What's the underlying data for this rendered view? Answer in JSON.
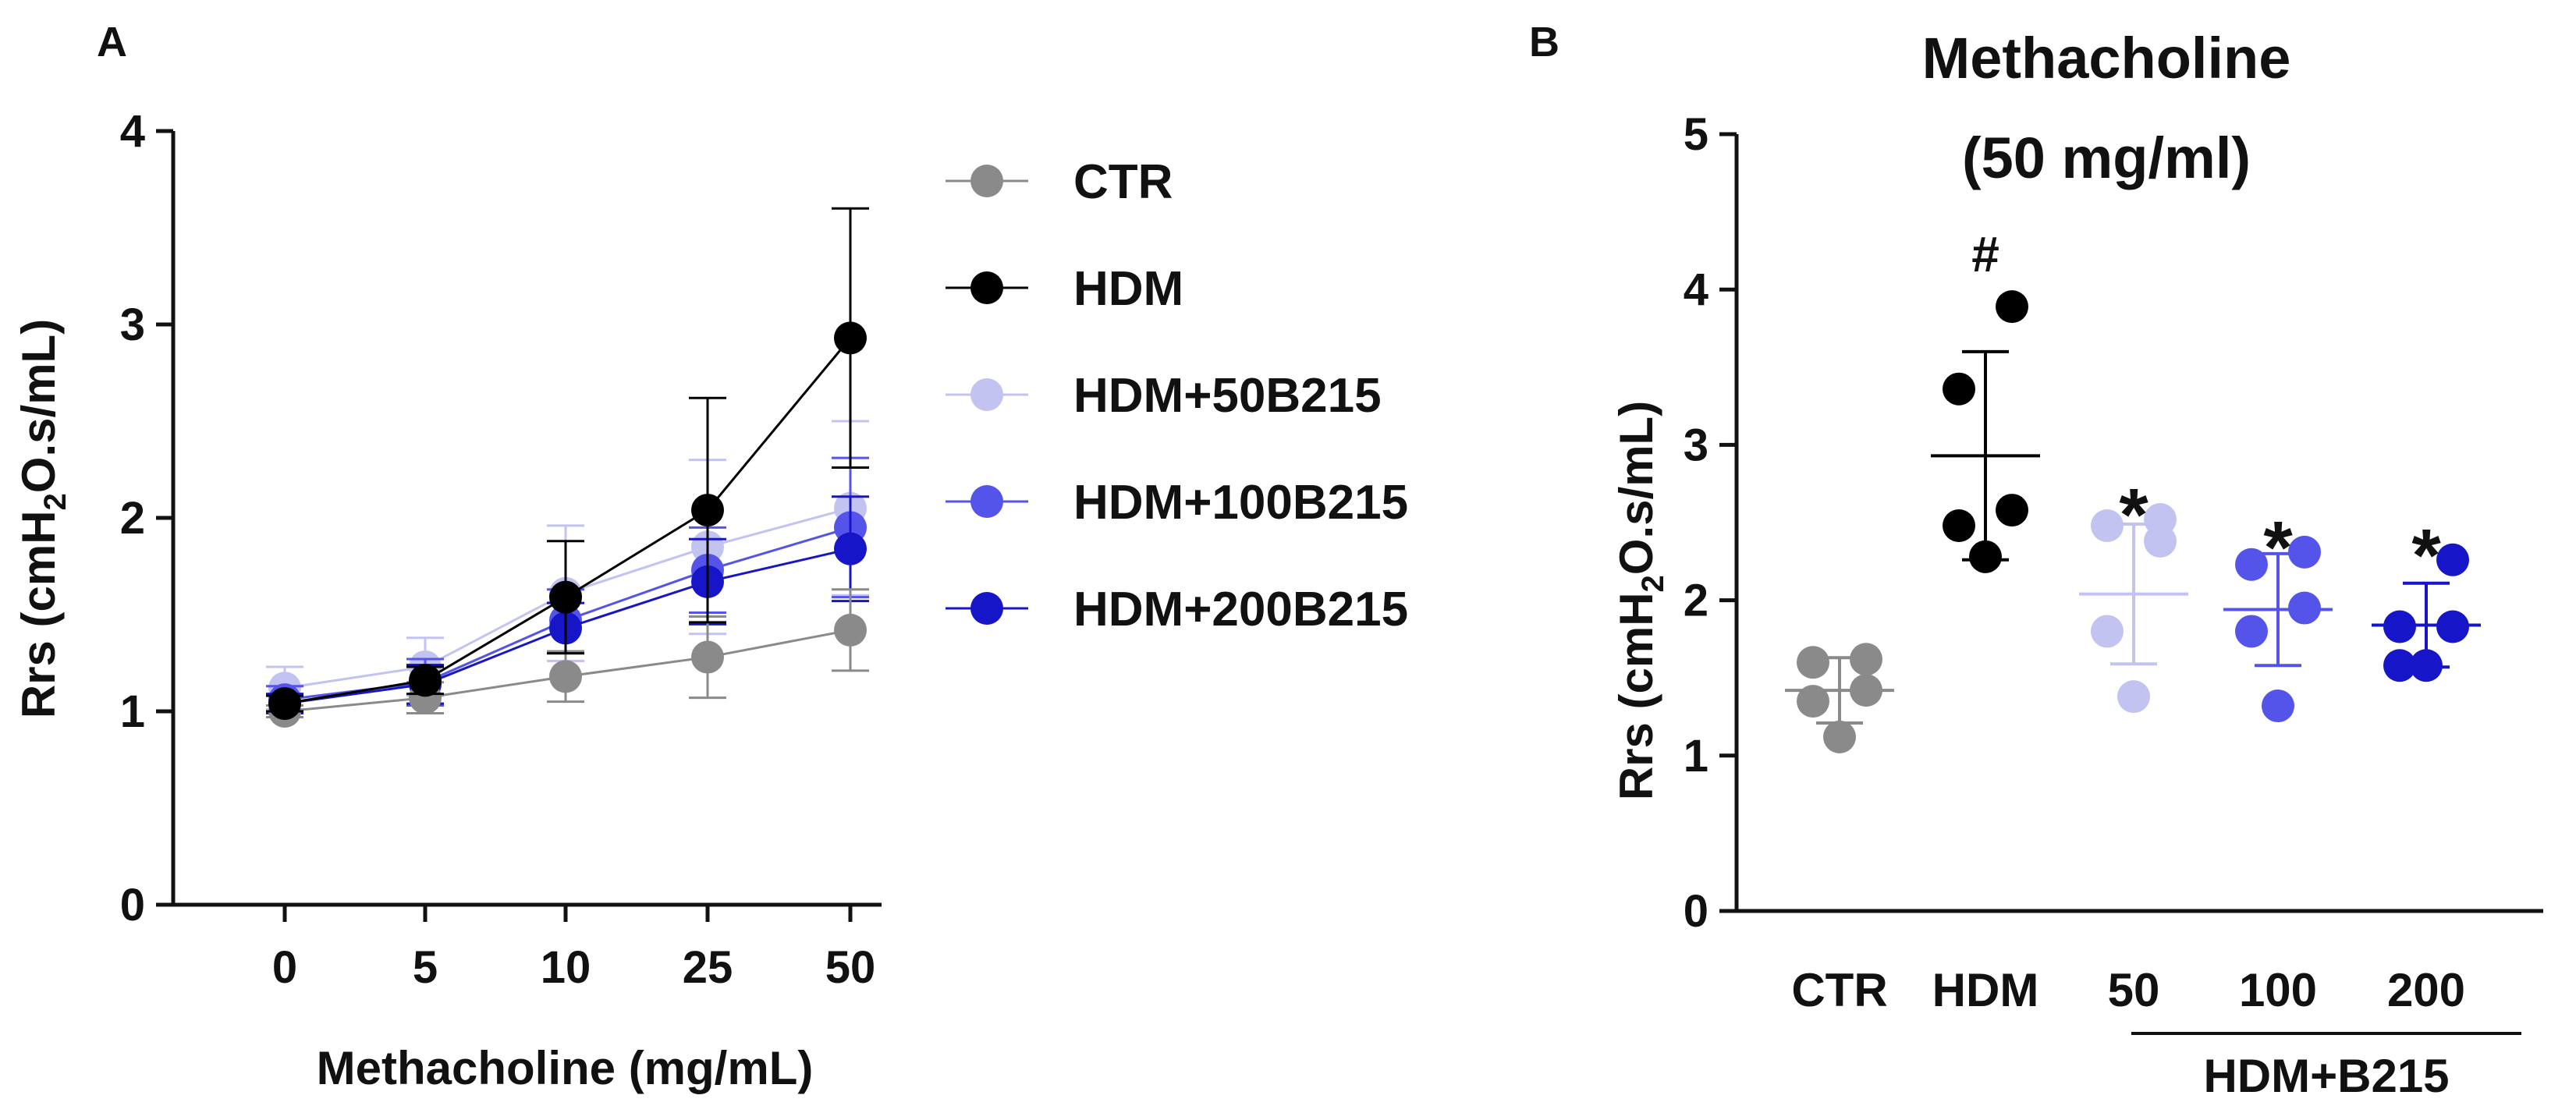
{
  "chart_data": [
    {
      "panel": "A",
      "type": "line",
      "title": "",
      "xlabel": "Methacholine (mg/mL)",
      "ylabel": "Rrs (cmH2O.s/mL)",
      "ylabel_parts": {
        "pre": "Rrs (cmH",
        "sub": "2",
        "post": "O.s/mL)"
      },
      "categories": [
        "0",
        "5",
        "10",
        "25",
        "50"
      ],
      "ylim": [
        0,
        4
      ],
      "yticks": [
        "0",
        "1",
        "2",
        "3",
        "4"
      ],
      "legend_position": "right",
      "series": [
        {
          "name": "CTR",
          "color": "#8a8a8a",
          "values": [
            1.0,
            1.07,
            1.18,
            1.28,
            1.42
          ],
          "errors": [
            0.03,
            0.08,
            0.13,
            0.21,
            0.21
          ]
        },
        {
          "name": "HDM",
          "color": "#000000",
          "values": [
            1.04,
            1.16,
            1.59,
            2.04,
            2.93
          ],
          "errors": [
            0.04,
            0.07,
            0.29,
            0.58,
            0.67
          ]
        },
        {
          "name": "HDM+50B215",
          "color": "#c3c3f2",
          "values": [
            1.12,
            1.23,
            1.61,
            1.85,
            2.05
          ],
          "errors": [
            0.11,
            0.15,
            0.35,
            0.45,
            0.45
          ]
        },
        {
          "name": "HDM+100B215",
          "color": "#5454ea",
          "values": [
            1.06,
            1.15,
            1.47,
            1.73,
            1.95
          ],
          "errors": [
            0.07,
            0.12,
            0.16,
            0.22,
            0.36
          ]
        },
        {
          "name": "HDM+200B215",
          "color": "#1616c8",
          "values": [
            1.04,
            1.14,
            1.43,
            1.67,
            1.84
          ],
          "errors": [
            0.05,
            0.1,
            0.13,
            0.22,
            0.27
          ]
        }
      ]
    },
    {
      "panel": "B",
      "type": "scatter",
      "title_lines": [
        "Methacholine",
        "(50 mg/ml)"
      ],
      "xlabel": "",
      "ylabel": "Rrs (cmH2O.s/mL)",
      "ylabel_parts": {
        "pre": "Rrs (cmH",
        "sub": "2",
        "post": "O.s/mL)"
      },
      "categories": [
        "CTR",
        "HDM",
        "50",
        "100",
        "200"
      ],
      "group_label": "HDM+B215",
      "ylim": [
        0,
        5
      ],
      "yticks": [
        "0",
        "1",
        "2",
        "3",
        "4",
        "5"
      ],
      "groups": [
        {
          "name": "CTR",
          "color": "#8a8a8a",
          "points": [
            1.12,
            1.35,
            1.42,
            1.6,
            1.62
          ],
          "mean": 1.42,
          "sd": 0.21,
          "annotation": ""
        },
        {
          "name": "HDM",
          "color": "#000000",
          "points": [
            2.28,
            2.48,
            2.58,
            3.36,
            3.89
          ],
          "mean": 2.93,
          "sd": 0.67,
          "annotation": "#"
        },
        {
          "name": "HDM+50B215",
          "color": "#c3c3f2",
          "points": [
            1.38,
            1.8,
            2.38,
            2.48,
            2.52
          ],
          "mean": 2.04,
          "sd": 0.45,
          "annotation": "*"
        },
        {
          "name": "HDM+100B215",
          "color": "#5454ea",
          "points": [
            1.32,
            1.8,
            1.95,
            2.23,
            2.31
          ],
          "mean": 1.94,
          "sd": 0.36,
          "annotation": "*"
        },
        {
          "name": "HDM+200B215",
          "color": "#1616c8",
          "points": [
            1.58,
            1.58,
            1.83,
            1.83,
            2.26
          ],
          "mean": 1.84,
          "sd": 0.27,
          "annotation": "*"
        }
      ]
    }
  ]
}
